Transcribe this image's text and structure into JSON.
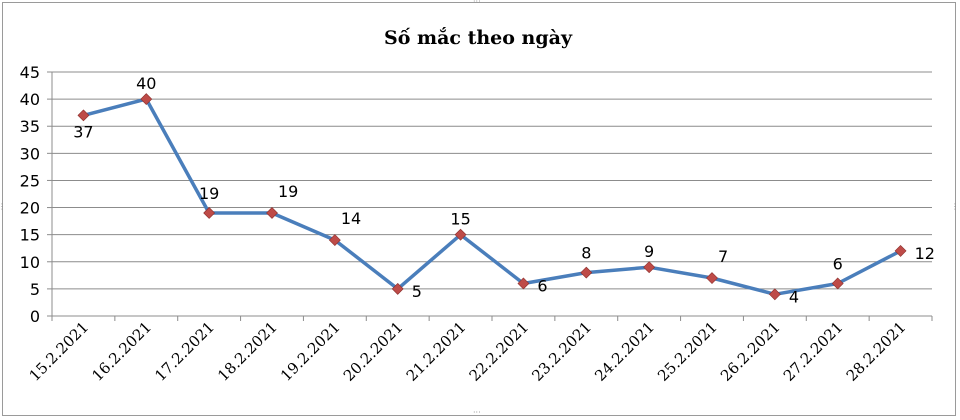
{
  "chart_data": {
    "type": "line",
    "title": "Số mắc theo ngày",
    "xlabel": "",
    "ylabel": "",
    "categories": [
      "15.2.2021",
      "16.2.2021",
      "17.2.2021",
      "18.2.2021",
      "19.2.2021",
      "20.2.2021",
      "21.2.2021",
      "22.2.2021",
      "23.2.2021",
      "24.2.2021",
      "25.2.2021",
      "26.2.2021",
      "27.2.2021",
      "28.2.2021"
    ],
    "series": [
      {
        "values": [
          37,
          40,
          19,
          19,
          14,
          5,
          15,
          6,
          8,
          9,
          7,
          4,
          6,
          12
        ]
      }
    ],
    "ylim": [
      0,
      45
    ],
    "yticks": [
      0,
      5,
      10,
      15,
      20,
      25,
      30,
      35,
      40,
      45
    ],
    "grid": true,
    "legend": "none",
    "data_labels": true,
    "colors": {
      "line": "#4a7ebb",
      "marker": "#be4b48",
      "grid": "#8c8c8c",
      "text": "#000000"
    }
  }
}
